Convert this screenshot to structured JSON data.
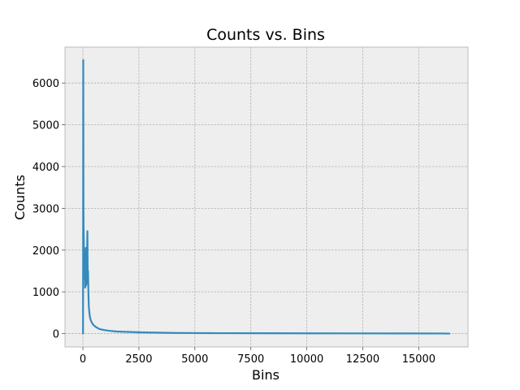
{
  "chart_data": {
    "type": "line",
    "title": "Counts vs. Bins",
    "xlabel": "Bins",
    "ylabel": "Counts",
    "xlim": [
      -800,
      17200
    ],
    "ylim": [
      -320,
      6860
    ],
    "xticks": [
      0,
      2500,
      5000,
      7500,
      10000,
      12500,
      15000
    ],
    "yticks": [
      0,
      1000,
      2000,
      3000,
      4000,
      5000,
      6000
    ],
    "grid": true,
    "style": "bmh",
    "series": [
      {
        "color": "#348ABD",
        "x": [
          0,
          5,
          10,
          15,
          20,
          25,
          30,
          40,
          50,
          60,
          70,
          80,
          90,
          100,
          110,
          120,
          130,
          140,
          150,
          160,
          170,
          180,
          190,
          200,
          210,
          220,
          230,
          240,
          250,
          260,
          270,
          280,
          290,
          300,
          320,
          350,
          400,
          450,
          500,
          600,
          700,
          800,
          1000,
          1200,
          1500,
          2000,
          2500,
          3000,
          3500,
          4000,
          5000,
          6000,
          8000,
          10000,
          12000,
          14000,
          16000,
          16384
        ],
        "y": [
          0,
          0,
          2000,
          6550,
          5000,
          3000,
          2500,
          2200,
          1800,
          1500,
          2000,
          1300,
          1800,
          1100,
          1600,
          1200,
          2050,
          1150,
          1700,
          1500,
          1300,
          1200,
          2100,
          2450,
          1700,
          1300,
          1500,
          1100,
          900,
          700,
          600,
          550,
          500,
          450,
          380,
          320,
          260,
          220,
          190,
          150,
          120,
          100,
          80,
          65,
          50,
          40,
          30,
          25,
          20,
          15,
          12,
          10,
          8,
          6,
          5,
          4,
          2,
          0
        ]
      }
    ]
  }
}
